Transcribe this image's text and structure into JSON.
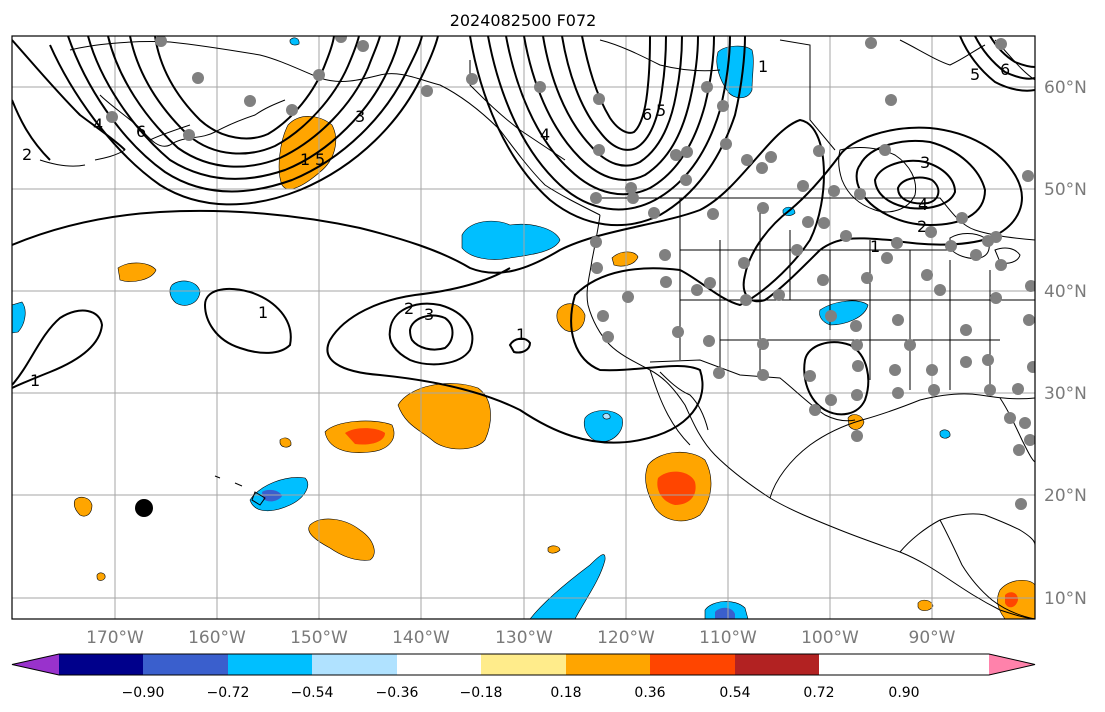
{
  "title": "2024082500 F072",
  "lat_labels": [
    "60°N",
    "50°N",
    "40°N",
    "30°N",
    "20°N",
    "10°N"
  ],
  "lon_labels": [
    "170°W",
    "160°W",
    "150°W",
    "140°W",
    "130°W",
    "120°W",
    "110°W",
    "100°W",
    "90°W"
  ],
  "colorbar": {
    "tick_labels": [
      "−0.90",
      "−0.72",
      "−0.54",
      "−0.36",
      "−0.18",
      "0.18",
      "0.36",
      "0.54",
      "0.72",
      "0.90"
    ],
    "colors": [
      "#9932cc",
      "#00008b",
      "#3a5fcd",
      "#00bfff",
      "#b0e2ff",
      "#ffffff",
      "#ffec8b",
      "#ffa500",
      "#ff4500",
      "#b22222",
      "#ff82ab"
    ]
  },
  "contour_labels": {
    "alaska_1": "1",
    "alaska_2": "2",
    "alaska_3": "3",
    "alaska_4": "4",
    "alaska_5": "5",
    "alaska_6": "6",
    "gulf_4": "4",
    "gulf_5": "5",
    "gulf_6": "6",
    "canada_1": "1",
    "canada_3": "3",
    "hudson_5": "5",
    "hudson_6": "6",
    "lakes_2": "2",
    "lakes_3": "3",
    "lakes_4": "4",
    "midwest_1": "1",
    "pac_2": "2",
    "pac_3": "3",
    "pac_1": "1",
    "east_1": "1",
    "west_1": "1",
    "left_1": "1",
    "left_2": "2"
  },
  "colors": {
    "station": "#808080",
    "grid": "#a6a6a6",
    "contour": "#000000"
  }
}
